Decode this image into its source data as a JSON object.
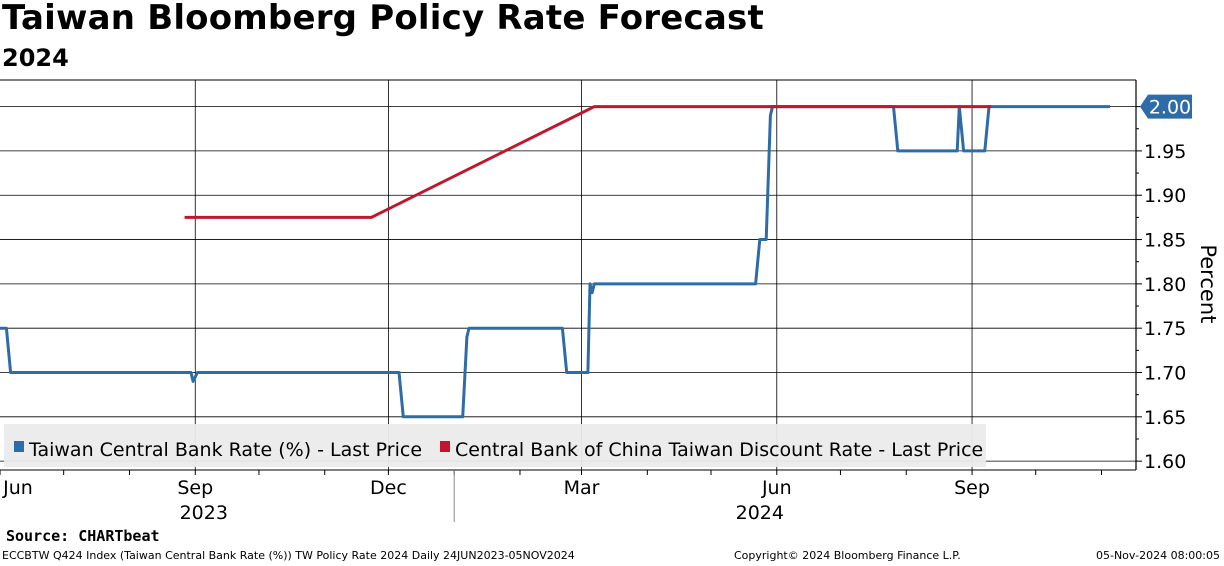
{
  "header": {
    "title": "Taiwan Bloomberg Policy Rate Forecast",
    "subtitle": "2024"
  },
  "footer": {
    "source": "Source: CHARTbeat",
    "ticker_info": "ECCBTW Q424 Index (Taiwan Central Bank Rate (%)) TW Policy Rate 2024  Daily 24JUN2023-05NOV2024",
    "copyright": "Copyright© 2024 Bloomberg Finance L.P.",
    "timestamp": "05-Nov-2024 08:00:05"
  },
  "chart_data": {
    "type": "line",
    "ylabel": "Percent",
    "ylim": [
      1.59,
      2.03
    ],
    "yticks": [
      1.6,
      1.65,
      1.7,
      1.75,
      1.8,
      1.85,
      1.9,
      1.95,
      2.0
    ],
    "xlim": [
      "2023-06-01",
      "2024-11-05"
    ],
    "x_month_ticks": [
      {
        "date": "2023-06-01",
        "label": "Jun"
      },
      {
        "date": "2023-09-01",
        "label": "Sep"
      },
      {
        "date": "2023-12-01",
        "label": "Dec"
      },
      {
        "date": "2024-03-01",
        "label": "Mar"
      },
      {
        "date": "2024-06-01",
        "label": "Jun"
      },
      {
        "date": "2024-09-01",
        "label": "Sep"
      }
    ],
    "x_year_labels": [
      {
        "label": "2023",
        "center": "2023-09-05"
      },
      {
        "label": "2024",
        "center": "2024-05-24"
      }
    ],
    "year_divider": "2024-01-01",
    "grid": true,
    "legend_position": "bottom-left",
    "last_value_label": "2.00",
    "series": [
      {
        "name": "Taiwan Central Bank Rate (%) - Last Price",
        "color": "#2e6ca8",
        "points": [
          [
            "2023-06-01",
            1.75
          ],
          [
            "2023-06-04",
            1.75
          ],
          [
            "2023-06-06",
            1.7
          ],
          [
            "2023-08-30",
            1.7
          ],
          [
            "2023-08-31",
            1.69
          ],
          [
            "2023-09-02",
            1.7
          ],
          [
            "2023-12-06",
            1.7
          ],
          [
            "2023-12-08",
            1.65
          ],
          [
            "2024-01-05",
            1.65
          ],
          [
            "2024-01-07",
            1.74
          ],
          [
            "2024-01-08",
            1.75
          ],
          [
            "2024-02-21",
            1.75
          ],
          [
            "2024-02-23",
            1.7
          ],
          [
            "2024-03-04",
            1.7
          ],
          [
            "2024-03-05",
            1.8
          ],
          [
            "2024-03-06",
            1.79
          ],
          [
            "2024-03-07",
            1.8
          ],
          [
            "2024-05-22",
            1.8
          ],
          [
            "2024-05-24",
            1.85
          ],
          [
            "2024-05-27",
            1.85
          ],
          [
            "2024-05-29",
            1.99
          ],
          [
            "2024-05-30",
            2.0
          ],
          [
            "2024-07-26",
            2.0
          ],
          [
            "2024-07-28",
            1.95
          ],
          [
            "2024-08-25",
            1.95
          ],
          [
            "2024-08-26",
            2.0
          ],
          [
            "2024-08-28",
            1.95
          ],
          [
            "2024-09-07",
            1.95
          ],
          [
            "2024-09-09",
            2.0
          ],
          [
            "2024-11-05",
            2.0
          ]
        ]
      },
      {
        "name": "Central Bank of China Taiwan Discount Rate - Last Price",
        "color": "#c0172e",
        "points": [
          [
            "2023-08-27",
            1.875
          ],
          [
            "2023-11-23",
            1.875
          ],
          [
            "2024-03-07",
            2.0
          ],
          [
            "2024-09-10",
            2.0
          ]
        ]
      }
    ]
  }
}
